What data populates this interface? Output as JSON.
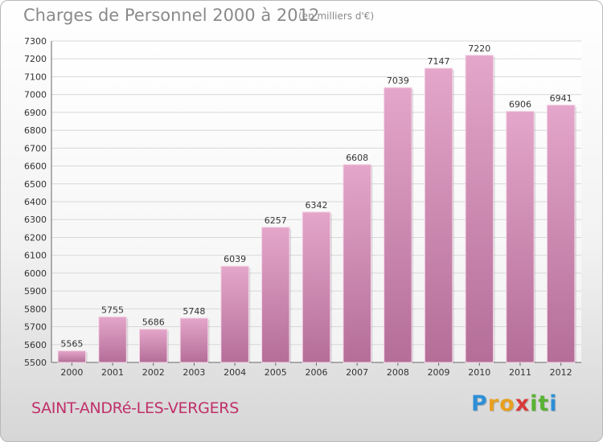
{
  "title": "Charges de Personnel 2000 à 2012",
  "subtitle": "(en milliers d'€)",
  "town": "SAINT-ANDRé-LES-VERGERS",
  "logo": {
    "letters": [
      "P",
      "r",
      "o",
      "x",
      "i",
      "t",
      "i"
    ],
    "colors": [
      "#2e8fd6",
      "#e8a020",
      "#e8a020",
      "#d83a3a",
      "#59b233",
      "#59b233",
      "#2e8fd6"
    ]
  },
  "colors": {
    "bar_top": "#e4a6ca",
    "bar_bottom": "#b46e98",
    "grid": "#d8d8d8"
  },
  "chart_data": {
    "type": "bar",
    "title": "Charges de Personnel 2000 à 2012",
    "categories": [
      "2000",
      "2001",
      "2002",
      "2003",
      "2004",
      "2005",
      "2006",
      "2007",
      "2008",
      "2009",
      "2010",
      "2011",
      "2012"
    ],
    "values": [
      5565,
      5755,
      5686,
      5748,
      6039,
      6257,
      6342,
      6608,
      7039,
      7147,
      7220,
      6906,
      6941
    ],
    "ylim": [
      5500,
      7300
    ],
    "yticks": [
      5500,
      5600,
      5700,
      5800,
      5900,
      6000,
      6100,
      6200,
      6300,
      6400,
      6500,
      6600,
      6700,
      6800,
      6900,
      7000,
      7100,
      7200,
      7300
    ],
    "xlabel": "",
    "ylabel": "",
    "grid": true
  }
}
